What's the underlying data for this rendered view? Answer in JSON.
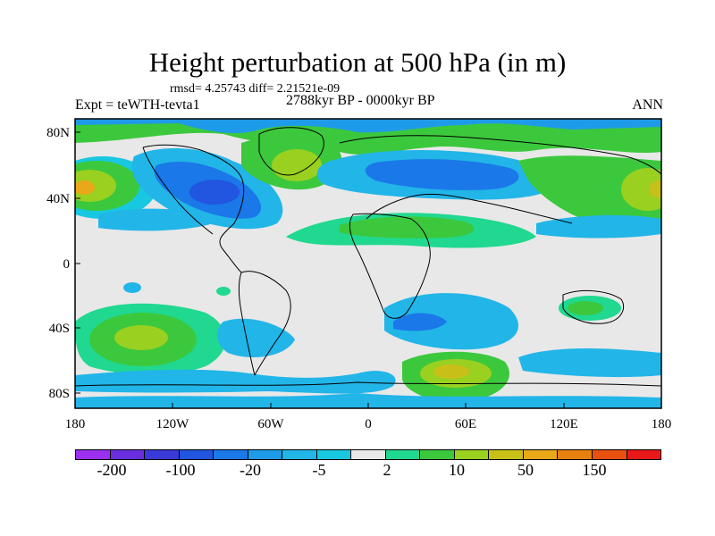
{
  "title": "Height perturbation at 500 hPa (in m)",
  "stats_text": "rmsd= 4.25743 diff= 2.21521e-09",
  "experiment": "Expt = teWTH-tevta1",
  "period": "2788kyr BP - 0000kyr BP",
  "season": "ANN",
  "chart_data": {
    "type": "heatmap",
    "projection": "cylindrical-equidistant",
    "lon_range": [
      -180,
      180
    ],
    "lat_range": [
      -90,
      90
    ],
    "x_tick_labels": [
      "180",
      "120W",
      "60W",
      "0",
      "60E",
      "120E",
      "180"
    ],
    "y_tick_labels": [
      "80N",
      "40N",
      "0",
      "40S",
      "80S"
    ],
    "colorbar_levels": [
      "-200",
      "-100",
      "-20",
      "-5",
      "2",
      "10",
      "50",
      "150"
    ],
    "colorbar_colors": [
      "#9b30f0",
      "#6a2ee0",
      "#3a3ad8",
      "#2255e0",
      "#1a78e8",
      "#1e9be8",
      "#22b5e8",
      "#18c8e0",
      "#e8e8e8",
      "#20d890",
      "#3cc83c",
      "#9ad020",
      "#c8c018",
      "#e8a818",
      "#e88010",
      "#e85010",
      "#e81818"
    ],
    "anomaly_regions": [
      {
        "lon": -150,
        "lat": 10,
        "level": "-20"
      },
      {
        "lon": -165,
        "lat": 42,
        "level": "50"
      },
      {
        "lon": -90,
        "lat": 48,
        "level": "-20"
      },
      {
        "lon": -45,
        "lat": 60,
        "level": "10"
      },
      {
        "lon": 5,
        "lat": 55,
        "level": "-20"
      },
      {
        "lon": 60,
        "lat": 70,
        "level": "10"
      },
      {
        "lon": 165,
        "lat": 42,
        "level": "10"
      },
      {
        "lon": -150,
        "lat": -45,
        "level": "10"
      },
      {
        "lon": 50,
        "lat": -65,
        "level": "50"
      },
      {
        "lon": 30,
        "lat": -35,
        "level": "-5"
      },
      {
        "lon": 120,
        "lat": -35,
        "level": "10"
      }
    ]
  }
}
